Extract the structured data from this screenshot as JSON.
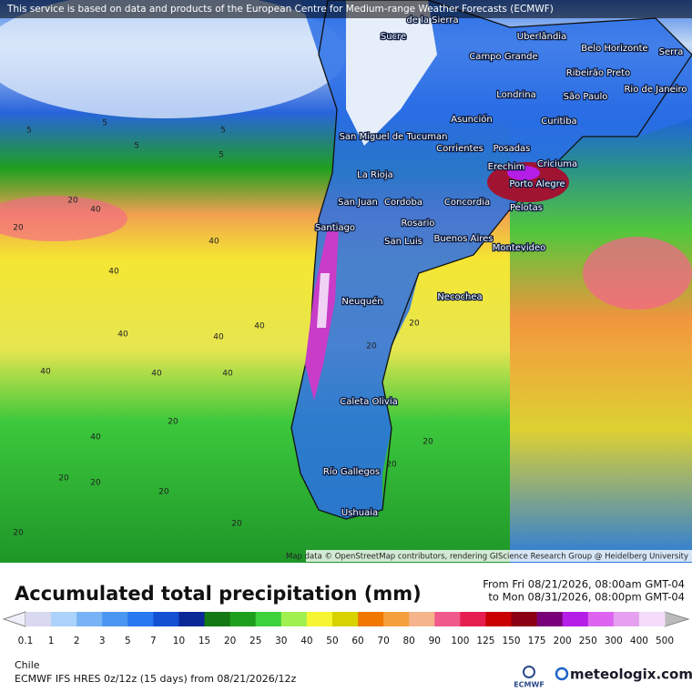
{
  "header": {
    "notice": "This service is based on data and products of the European Centre for Medium-range Weather Forecasts (ECMWF)"
  },
  "map": {
    "cities": [
      "de la Sierra",
      "Sucre",
      "Uberlândia",
      "Belo Horizonte",
      "Serra",
      "Campo Grande",
      "Ribeirão Preto",
      "Londrina",
      "Rio de Janeiro",
      "São Paulo",
      "Asunción",
      "Curitiba",
      "San Miguel de Tucuman",
      "Corrientes",
      "Posadas",
      "Erechim",
      "Criciuma",
      "La Rioja",
      "Porto Alegre",
      "San Juan",
      "Cordoba",
      "Concordia",
      "Pelotas",
      "Rosario",
      "Santiago",
      "Buenos Aires",
      "San Luis",
      "Montevideo",
      "Neuquén",
      "Necochea",
      "Caleta Olivia",
      "Río Gallegos",
      "Ushuaia"
    ],
    "contour_labels": [
      5,
      5,
      5,
      5,
      5,
      20,
      20,
      40,
      40,
      40,
      40,
      40,
      40,
      40,
      20,
      20,
      20,
      20,
      20,
      20,
      40,
      40,
      40,
      20,
      20,
      20,
      20
    ],
    "attribution": "Map data © OpenStreetMap contributors, rendering GIScience Research Group @ Heidelberg University"
  },
  "legend": {
    "title": "Accumulated total precipitation (mm)",
    "period_from": "From Fri 08/21/2026, 08:00am GMT-04",
    "period_to": "to Mon 08/31/2026, 08:00pm GMT-04",
    "stops": [
      0.1,
      1,
      2,
      3,
      5,
      7,
      10,
      15,
      20,
      25,
      30,
      40,
      50,
      60,
      70,
      80,
      90,
      100,
      125,
      150,
      175,
      200,
      250,
      300,
      400,
      500
    ],
    "colors": [
      "#d8d8f0",
      "#aad2fa",
      "#78b4f5",
      "#4b96f0",
      "#2878f0",
      "#1450d2",
      "#0a2896",
      "#147814",
      "#1ea01e",
      "#3cd23c",
      "#a0f050",
      "#f5f532",
      "#d7d200",
      "#f07800",
      "#f5a03c",
      "#f5b48c",
      "#f05a8c",
      "#e61e50",
      "#c80000",
      "#8c0014",
      "#780078",
      "#b41ee6",
      "#dc64f0",
      "#e6a0f0",
      "#f5dcfa"
    ]
  },
  "footer": {
    "region": "Chile",
    "model": "ECMWF IFS HRES 0z/12z (15 days) from 08/21/2026/12z",
    "ecmwf": "ECMWF",
    "brand": "meteologix.com"
  }
}
